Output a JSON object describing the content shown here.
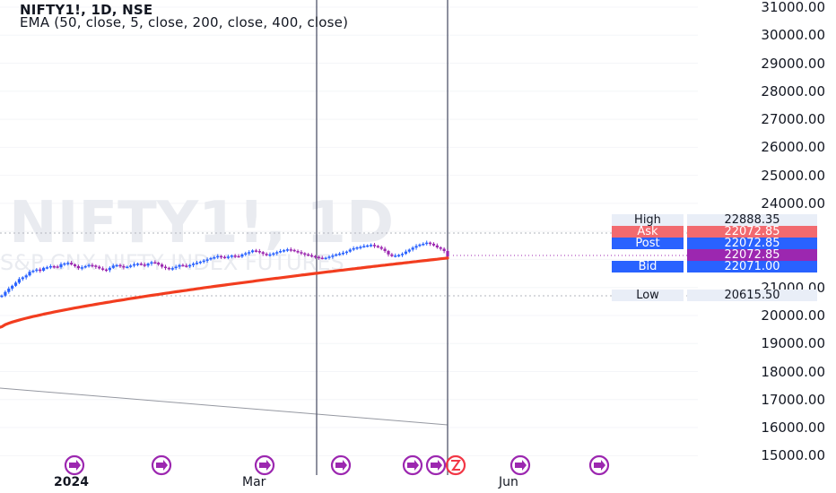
{
  "header": {
    "symbol_line": "NIFTY1!, 1D, NSE",
    "indicator_line": "EMA (50, close, 5, close, 200, close, 400, close)"
  },
  "watermark": {
    "symbol": "NIFTY1!, 1D",
    "description": "S&P CNX NIFTY INDEX FUTURES"
  },
  "price_axis": {
    "ticks": [
      "31000.00",
      "30000.00",
      "29000.00",
      "28000.00",
      "27000.00",
      "26000.00",
      "25000.00",
      "24000.00",
      "21000.00",
      "20000.00",
      "19000.00",
      "18000.00",
      "17000.00",
      "16000.00",
      "15000.00"
    ]
  },
  "price_labels": [
    {
      "name": "High",
      "value": "22888.35",
      "label_bg": "#e9eef7",
      "value_bg": "#e9eef7",
      "color": "#131722"
    },
    {
      "name": "Ask",
      "value": "22072.85",
      "label_bg": "#f26a6f",
      "value_bg": "#f26a6f",
      "color": "#ffffff"
    },
    {
      "name": "Post",
      "value": "22072.85",
      "label_bg": "#2962ff",
      "value_bg": "#2962ff",
      "color": "#ffffff"
    },
    {
      "name": "",
      "value": "22072.85",
      "label_bg": "#9c27b0",
      "value_bg": "#9c27b0",
      "color": "#ffffff"
    },
    {
      "name": "Bid",
      "value": "22071.00",
      "label_bg": "#2962ff",
      "value_bg": "#2962ff",
      "color": "#ffffff"
    },
    {
      "name": "Low",
      "value": "20615.50",
      "label_bg": "#e9eef7",
      "value_bg": "#e9eef7",
      "color": "#131722"
    }
  ],
  "time_axis": {
    "ticks": [
      "2024",
      "Mar",
      "Jun"
    ]
  },
  "event_icons": [
    "play-icon",
    "play-icon",
    "play-icon",
    "play-icon",
    "play-icon",
    "play-icon",
    "play-icon",
    "play-icon",
    "play-icon",
    "play-icon",
    "earnings-icon"
  ],
  "colors": {
    "ema_line": "#f23d1f",
    "candle_up": "#2962ff",
    "candle_down": "#9c27b0",
    "vertical_line": "#5d6075",
    "event_icon": "#9c27b0"
  },
  "chart_data": {
    "type": "candlestick",
    "symbol": "NIFTY1!",
    "interval": "1D",
    "ylim": [
      15000,
      31000
    ],
    "high": 22888.35,
    "low": 20615.5,
    "last": 22072.85,
    "ask": 22072.85,
    "bid": 22071.0,
    "closes": [
      20710,
      20840,
      20960,
      21060,
      21170,
      21300,
      21360,
      21430,
      21560,
      21600,
      21640,
      21600,
      21700,
      21720,
      21760,
      21750,
      21720,
      21830,
      21860,
      21880,
      21820,
      21760,
      21690,
      21720,
      21760,
      21800,
      21780,
      21740,
      21680,
      21640,
      21620,
      21700,
      21780,
      21800,
      21760,
      21720,
      21740,
      21780,
      21830,
      21850,
      21820,
      21780,
      21850,
      21900,
      21880,
      21820,
      21740,
      21700,
      21650,
      21690,
      21740,
      21800,
      21780,
      21760,
      21800,
      21850,
      21880,
      21920,
      21960,
      22000,
      22050,
      22080,
      22120,
      22090,
      22060,
      22100,
      22140,
      22120,
      22100,
      22180,
      22220,
      22260,
      22320,
      22300,
      22260,
      22200,
      22150,
      22180,
      22220,
      22260,
      22300,
      22330,
      22360,
      22340,
      22300,
      22260,
      22220,
      22180,
      22150,
      22120,
      22090,
      22060,
      22040,
      22060,
      22100,
      22140,
      22180,
      22210,
      22240,
      22280,
      22350,
      22400,
      22430,
      22450,
      22480,
      22500,
      22520,
      22480,
      22440,
      22380,
      22300,
      22180,
      22120,
      22140,
      22160,
      22200,
      22280,
      22350,
      22420,
      22480,
      22530,
      22560,
      22600,
      22560,
      22500,
      22430,
      22380,
      22300,
      22100
    ]
  }
}
